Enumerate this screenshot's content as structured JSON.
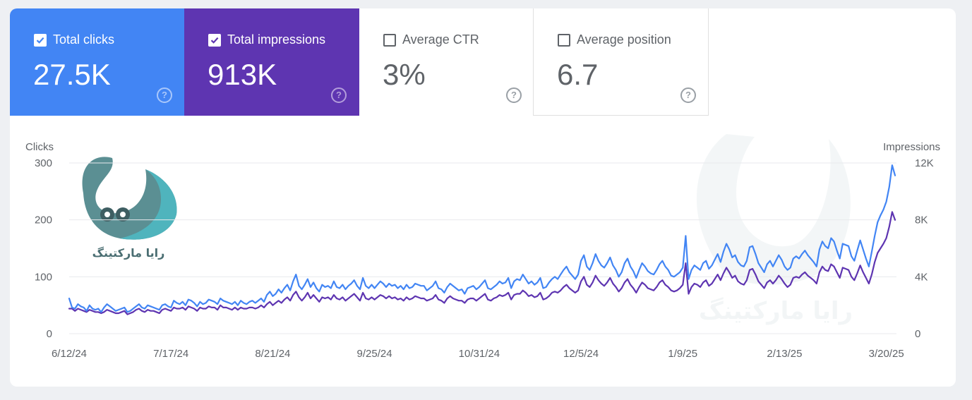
{
  "metrics": [
    {
      "label": "Total clicks",
      "value": "27.5K",
      "checked": true,
      "help": "?"
    },
    {
      "label": "Total impressions",
      "value": "913K",
      "checked": true,
      "help": "?"
    },
    {
      "label": "Average CTR",
      "value": "3%",
      "checked": false,
      "help": "?"
    },
    {
      "label": "Average position",
      "value": "6.7",
      "checked": false,
      "help": "?"
    }
  ],
  "logo": {
    "text": "رایا مارکتینگ"
  },
  "colors": {
    "clicks": "#4285f4",
    "impressions": "#5e35b1",
    "grid": "#e8eaed",
    "text": "#5f6368"
  },
  "chart_data": {
    "type": "line",
    "title": "",
    "ylabel_left": "Clicks",
    "ylabel_right": "Impressions",
    "ylim_left": [
      0,
      300
    ],
    "ylim_right": [
      0,
      12000
    ],
    "y_ticks_left": [
      "0",
      "100",
      "200",
      "300"
    ],
    "y_ticks_right": [
      "0",
      "4K",
      "8K",
      "12K"
    ],
    "x_tick_labels": [
      "6/12/24",
      "7/17/24",
      "8/21/24",
      "9/25/24",
      "10/31/24",
      "12/5/24",
      "1/9/25",
      "2/13/25",
      "3/20/25"
    ],
    "x_tick_day_index": [
      0,
      35,
      70,
      105,
      141,
      176,
      211,
      246,
      281
    ],
    "start_date": "6/12/24",
    "series": [
      {
        "name": "Total clicks",
        "axis": "left",
        "color": "#4285f4",
        "values": [
          62,
          46,
          44,
          52,
          48,
          46,
          40,
          50,
          44,
          42,
          44,
          38,
          46,
          52,
          48,
          44,
          40,
          42,
          44,
          46,
          38,
          40,
          44,
          48,
          52,
          46,
          44,
          50,
          48,
          46,
          44,
          42,
          50,
          52,
          48,
          46,
          58,
          54,
          52,
          56,
          50,
          60,
          58,
          54,
          48,
          56,
          52,
          54,
          60,
          58,
          56,
          52,
          62,
          58,
          56,
          54,
          52,
          56,
          50,
          58,
          54,
          52,
          56,
          58,
          54,
          58,
          62,
          56,
          68,
          74,
          66,
          70,
          78,
          72,
          80,
          86,
          76,
          92,
          104,
          84,
          78,
          86,
          96,
          82,
          90,
          80,
          74,
          86,
          82,
          84,
          80,
          92,
          82,
          80,
          86,
          78,
          84,
          88,
          94,
          84,
          78,
          98,
          84,
          80,
          86,
          80,
          86,
          92,
          88,
          82,
          88,
          84,
          86,
          80,
          84,
          78,
          86,
          80,
          82,
          88,
          86,
          84,
          84,
          76,
          80,
          84,
          92,
          80,
          78,
          72,
          82,
          88,
          84,
          80,
          76,
          78,
          70,
          80,
          82,
          84,
          78,
          82,
          88,
          94,
          80,
          78,
          82,
          86,
          92,
          88,
          90,
          98,
          80,
          92,
          96,
          94,
          104,
          96,
          88,
          92,
          86,
          90,
          98,
          80,
          82,
          90,
          96,
          100,
          96,
          104,
          112,
          118,
          108,
          102,
          96,
          104,
          128,
          138,
          118,
          112,
          124,
          140,
          128,
          120,
          116,
          124,
          134,
          120,
          112,
          100,
          108,
          124,
          132,
          118,
          110,
          98,
          112,
          124,
          118,
          110,
          106,
          104,
          112,
          122,
          128,
          118,
          112,
          102,
          100,
          104,
          108,
          116,
          172,
          96,
          112,
          120,
          116,
          112,
          124,
          128,
          114,
          120,
          130,
          140,
          126,
          144,
          158,
          148,
          134,
          138,
          126,
          120,
          118,
          128,
          152,
          154,
          140,
          124,
          116,
          108,
          122,
          128,
          118,
          128,
          138,
          130,
          118,
          112,
          116,
          132,
          136,
          132,
          140,
          146,
          138,
          132,
          126,
          118,
          148,
          162,
          154,
          150,
          168,
          162,
          146,
          132,
          158,
          156,
          154,
          136,
          128,
          146,
          164,
          148,
          132,
          118,
          144,
          172,
          196,
          208,
          218,
          232,
          258,
          296,
          278
        ]
      },
      {
        "name": "Total impressions",
        "axis": "left",
        "color": "#5e35b1",
        "values": [
          44,
          44,
          40,
          44,
          42,
          40,
          38,
          42,
          40,
          38,
          38,
          36,
          38,
          42,
          40,
          38,
          36,
          36,
          38,
          40,
          34,
          36,
          38,
          42,
          44,
          40,
          38,
          42,
          40,
          40,
          38,
          36,
          42,
          44,
          42,
          40,
          46,
          44,
          44,
          46,
          42,
          48,
          46,
          44,
          40,
          46,
          44,
          44,
          48,
          46,
          46,
          42,
          50,
          46,
          46,
          44,
          42,
          46,
          42,
          46,
          44,
          44,
          46,
          46,
          44,
          46,
          50,
          46,
          52,
          56,
          50,
          54,
          58,
          54,
          60,
          64,
          58,
          68,
          74,
          64,
          58,
          64,
          72,
          62,
          68,
          62,
          56,
          64,
          62,
          64,
          60,
          68,
          62,
          60,
          64,
          58,
          62,
          66,
          70,
          64,
          58,
          72,
          62,
          60,
          64,
          60,
          64,
          68,
          66,
          62,
          66,
          62,
          64,
          60,
          62,
          58,
          64,
          60,
          62,
          66,
          64,
          62,
          62,
          58,
          60,
          62,
          68,
          60,
          58,
          54,
          62,
          66,
          62,
          60,
          58,
          58,
          54,
          60,
          62,
          62,
          58,
          62,
          66,
          70,
          60,
          58,
          62,
          64,
          68,
          66,
          68,
          72,
          60,
          68,
          70,
          70,
          76,
          72,
          66,
          68,
          64,
          66,
          72,
          60,
          62,
          66,
          72,
          74,
          72,
          76,
          82,
          86,
          80,
          76,
          72,
          76,
          92,
          100,
          86,
          82,
          90,
          102,
          94,
          88,
          84,
          90,
          98,
          88,
          82,
          74,
          80,
          90,
          96,
          86,
          80,
          72,
          82,
          90,
          86,
          80,
          78,
          76,
          82,
          90,
          94,
          86,
          82,
          76,
          74,
          76,
          80,
          86,
          124,
          70,
          82,
          88,
          86,
          82,
          90,
          94,
          84,
          88,
          96,
          104,
          94,
          106,
          116,
          108,
          98,
          102,
          92,
          88,
          86,
          94,
          112,
          114,
          104,
          92,
          86,
          80,
          90,
          94,
          88,
          94,
          102,
          96,
          88,
          82,
          86,
          98,
          100,
          98,
          104,
          108,
          102,
          98,
          94,
          88,
          108,
          118,
          112,
          110,
          122,
          118,
          108,
          98,
          116,
          114,
          112,
          100,
          94,
          106,
          120,
          108,
          98,
          88,
          104,
          126,
          142,
          150,
          158,
          168,
          188,
          214,
          200
        ]
      }
    ]
  }
}
